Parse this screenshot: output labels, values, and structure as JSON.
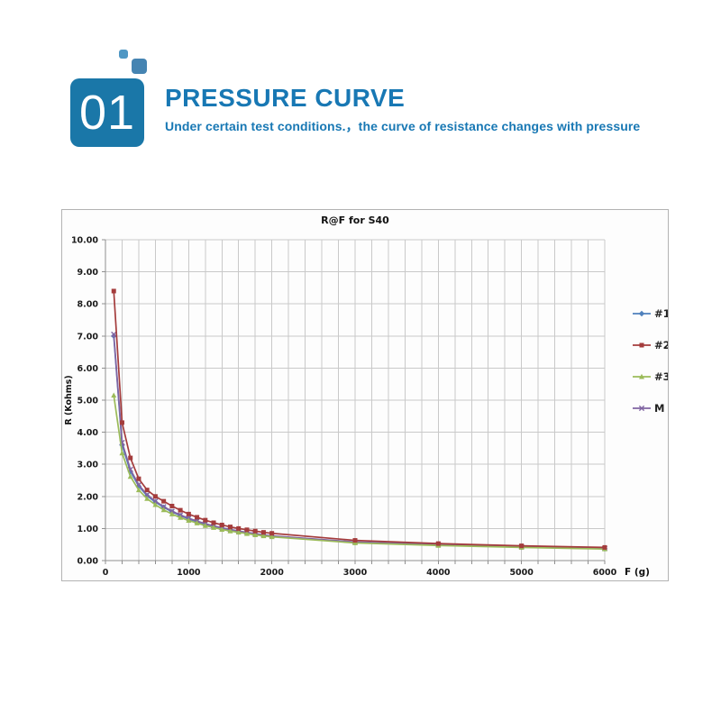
{
  "header": {
    "number": "01",
    "title": "PRESSURE CURVE",
    "subtitle": "Under certain test conditions.，the curve of resistance changes with pressure",
    "colors": {
      "badge": "#1a77a8",
      "title_text": "#1878b4",
      "square_small": "#4f97c4",
      "square_large": "#4584b2"
    }
  },
  "chart_data": {
    "type": "line",
    "title": "R@F for S40",
    "xlabel": "F (g)",
    "ylabel": "R (Kohms)",
    "xlim": [
      0,
      6000
    ],
    "ylim": [
      0,
      10
    ],
    "x_major_ticks": [
      0,
      1000,
      2000,
      3000,
      4000,
      5000,
      6000
    ],
    "x_grid_interval": 200,
    "y_grid_interval": 1,
    "y_ticks": [
      "10.00",
      "9.00",
      "8.00",
      "7.00",
      "6.00",
      "5.00",
      "4.00",
      "3.00",
      "2.00",
      "1.00",
      "0.00"
    ],
    "grid": true,
    "legend_position": "right-outside",
    "draw_order": [
      0,
      3,
      2,
      1
    ],
    "axis_color": "#8f8f8f",
    "grid_color": "#c9c9c9",
    "tick_text_color": "#1a1a1a",
    "x": [
      100,
      200,
      300,
      400,
      500,
      600,
      700,
      800,
      900,
      1000,
      1100,
      1200,
      1300,
      1400,
      1500,
      1600,
      1700,
      1800,
      1900,
      2000,
      3000,
      4000,
      5000,
      6000
    ],
    "series": [
      {
        "name": "#1",
        "color": "#4f81bd",
        "marker": "diamond",
        "values": [
          7.0,
          3.6,
          2.78,
          2.32,
          2.02,
          1.82,
          1.66,
          1.52,
          1.4,
          1.3,
          1.21,
          1.13,
          1.06,
          1.0,
          0.95,
          0.9,
          0.86,
          0.82,
          0.79,
          0.76,
          0.57,
          0.49,
          0.42,
          0.37
        ]
      },
      {
        "name": "#2",
        "color": "#a43c3c",
        "marker": "square",
        "values": [
          8.4,
          4.3,
          3.2,
          2.55,
          2.2,
          2.0,
          1.85,
          1.7,
          1.57,
          1.45,
          1.35,
          1.26,
          1.18,
          1.11,
          1.05,
          1.0,
          0.96,
          0.92,
          0.88,
          0.85,
          0.63,
          0.53,
          0.46,
          0.41
        ]
      },
      {
        "name": "#3",
        "color": "#9bbb59",
        "marker": "triangle",
        "values": [
          5.15,
          3.35,
          2.62,
          2.2,
          1.93,
          1.74,
          1.58,
          1.45,
          1.34,
          1.25,
          1.17,
          1.09,
          1.03,
          0.97,
          0.92,
          0.88,
          0.84,
          0.8,
          0.77,
          0.74,
          0.55,
          0.47,
          0.41,
          0.36
        ]
      },
      {
        "name": "M",
        "color": "#8064a2",
        "marker": "cross",
        "values": [
          7.05,
          3.68,
          2.84,
          2.36,
          2.05,
          1.85,
          1.68,
          1.54,
          1.42,
          1.32,
          1.23,
          1.15,
          1.08,
          1.02,
          0.97,
          0.92,
          0.88,
          0.84,
          0.8,
          0.77,
          0.58,
          0.5,
          0.43,
          0.38
        ]
      }
    ]
  }
}
